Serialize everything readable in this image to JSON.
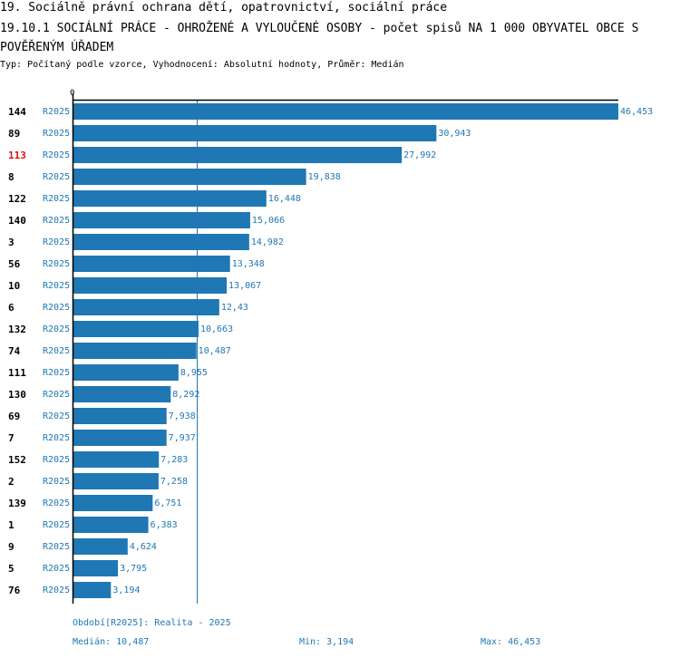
{
  "header": {
    "title": "19. Sociálně právní ochrana dětí, opatrovnictví, sociální práce",
    "subtitle_main": "19.10.1 SOCIÁLNÍ PRÁCE - OHROŽENÉ A VYLOUČENÉ OSOBY - počet spisů NA 1 000 OBYVATEL OBCE S POVĚŘENÝM ÚŘADEM",
    "meta": "Typ: Počítaný podle vzorce, Vyhodnocení: Absolutní hodnoty, Průměr: Medián"
  },
  "colors": {
    "bar": "#1f77b4",
    "label_text": "#1f77b4",
    "highlight_id": "#e01010",
    "axis": "#000000"
  },
  "chart_data": {
    "type": "bar",
    "orientation": "horizontal",
    "axis_label_zero": "0",
    "xlim": [
      0,
      46453
    ],
    "median": 10487,
    "highlight": "113",
    "rows": [
      {
        "id": "144",
        "period": "R2025",
        "value": 46453,
        "label": "46,453"
      },
      {
        "id": "89",
        "period": "R2025",
        "value": 30943,
        "label": "30,943"
      },
      {
        "id": "113",
        "period": "R2025",
        "value": 27992,
        "label": "27,992"
      },
      {
        "id": "8",
        "period": "R2025",
        "value": 19838,
        "label": "19,838"
      },
      {
        "id": "122",
        "period": "R2025",
        "value": 16448,
        "label": "16,448"
      },
      {
        "id": "140",
        "period": "R2025",
        "value": 15066,
        "label": "15,066"
      },
      {
        "id": "3",
        "period": "R2025",
        "value": 14982,
        "label": "14,982"
      },
      {
        "id": "56",
        "period": "R2025",
        "value": 13348,
        "label": "13,348"
      },
      {
        "id": "10",
        "period": "R2025",
        "value": 13067,
        "label": "13,067"
      },
      {
        "id": "6",
        "period": "R2025",
        "value": 12430,
        "label": "12,43"
      },
      {
        "id": "132",
        "period": "R2025",
        "value": 10663,
        "label": "10,663"
      },
      {
        "id": "74",
        "period": "R2025",
        "value": 10487,
        "label": "10,487"
      },
      {
        "id": "111",
        "period": "R2025",
        "value": 8955,
        "label": "8,955"
      },
      {
        "id": "130",
        "period": "R2025",
        "value": 8292,
        "label": "8,292"
      },
      {
        "id": "69",
        "period": "R2025",
        "value": 7938,
        "label": "7,938"
      },
      {
        "id": "7",
        "period": "R2025",
        "value": 7937,
        "label": "7,937"
      },
      {
        "id": "152",
        "period": "R2025",
        "value": 7283,
        "label": "7,283"
      },
      {
        "id": "2",
        "period": "R2025",
        "value": 7258,
        "label": "7,258"
      },
      {
        "id": "139",
        "period": "R2025",
        "value": 6751,
        "label": "6,751"
      },
      {
        "id": "1",
        "period": "R2025",
        "value": 6383,
        "label": "6,383"
      },
      {
        "id": "9",
        "period": "R2025",
        "value": 4624,
        "label": "4,624"
      },
      {
        "id": "5",
        "period": "R2025",
        "value": 3795,
        "label": "3,795"
      },
      {
        "id": "76",
        "period": "R2025",
        "value": 3194,
        "label": "3,194"
      }
    ]
  },
  "footer": {
    "period": "Období[R2025]: Realita - 2025",
    "median": "Medián: 10,487",
    "min": "Min: 3,194",
    "max": "Max: 46,453"
  }
}
